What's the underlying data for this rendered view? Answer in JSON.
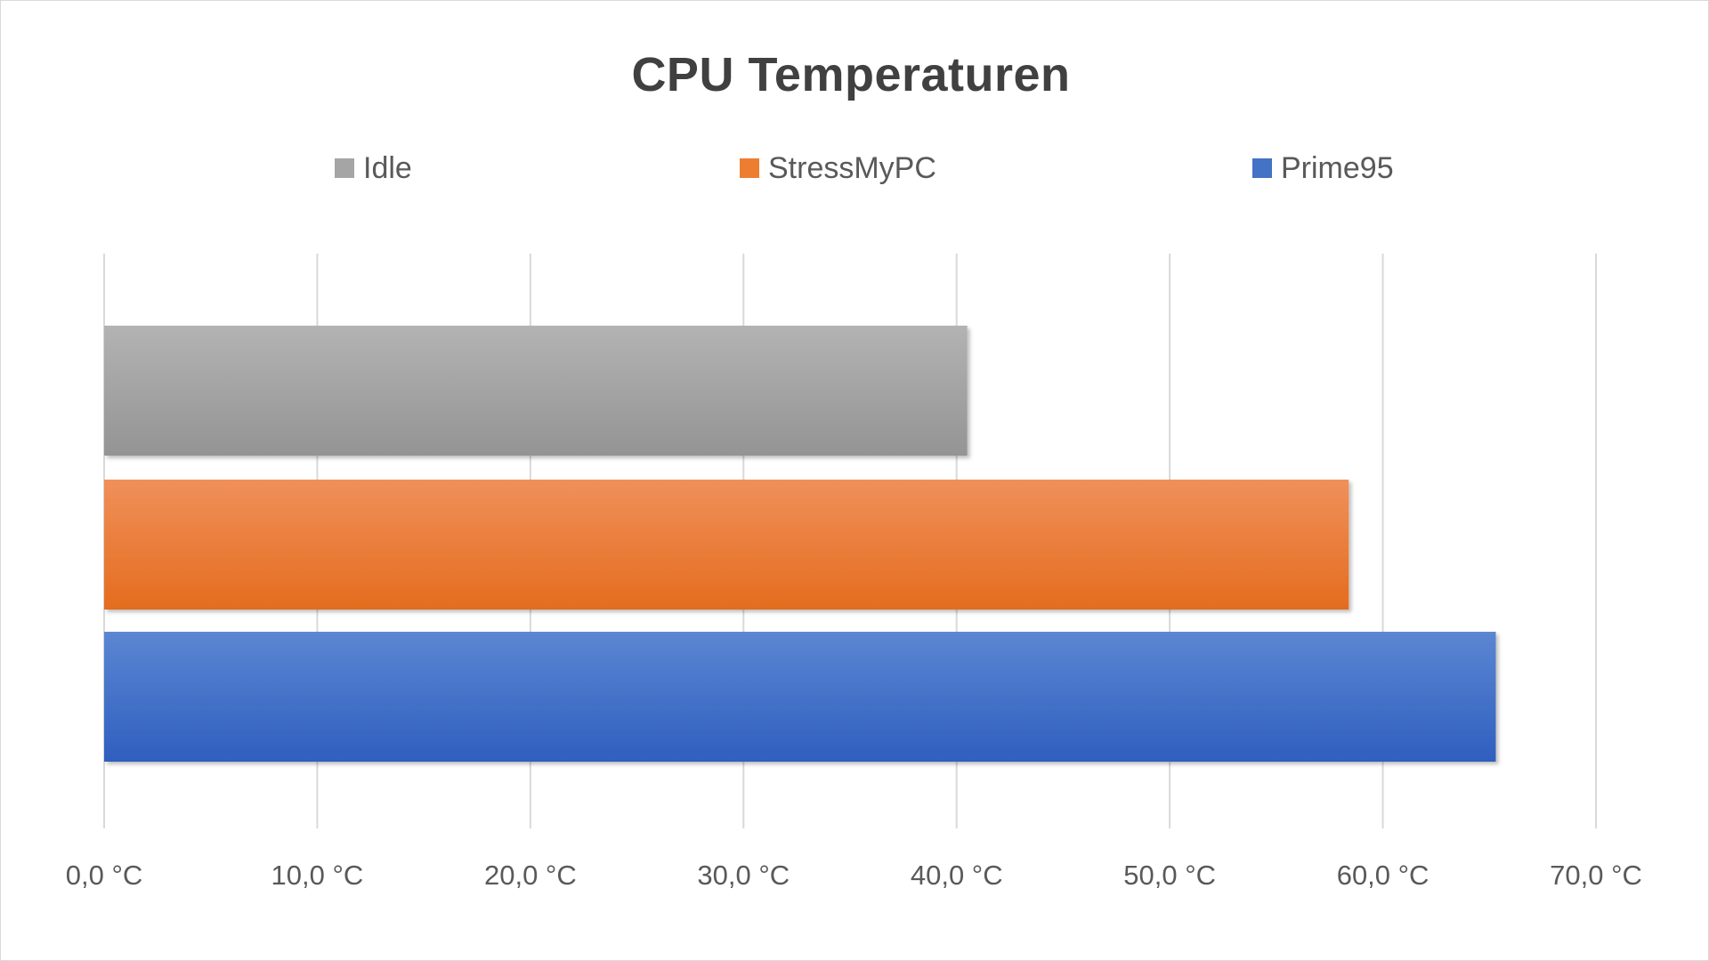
{
  "chart_data": {
    "type": "bar",
    "orientation": "horizontal",
    "title": "CPU Temperaturen",
    "xlabel": "",
    "ylabel": "",
    "xlim": [
      0,
      70
    ],
    "x_ticks": [
      0,
      10,
      20,
      30,
      40,
      50,
      60,
      70
    ],
    "x_tick_labels": [
      "0,0 °C",
      "10,0 °C",
      "20,0 °C",
      "30,0 °C",
      "40,0 °C",
      "50,0 °C",
      "60,0 °C",
      "70,0 °C"
    ],
    "grid": true,
    "legend_position": "top",
    "series": [
      {
        "name": "Idle",
        "value": 40.5,
        "color": "#a5a5a5"
      },
      {
        "name": "StressMyPC",
        "value": 58.4,
        "color": "#ed7d31"
      },
      {
        "name": "Prime95",
        "value": 65.3,
        "color": "#4472c4"
      }
    ]
  }
}
